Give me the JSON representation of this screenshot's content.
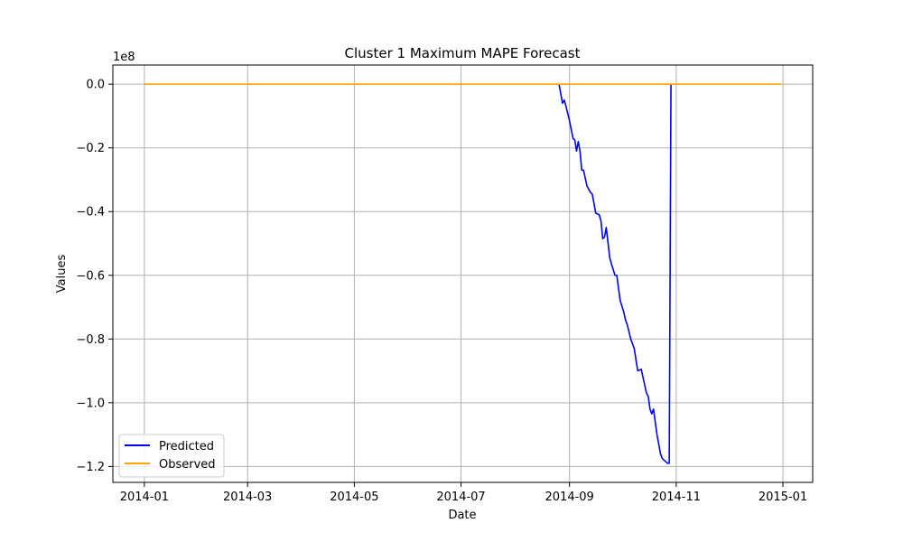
{
  "chart_data": {
    "type": "line",
    "title": "Cluster 1 Maximum MAPE Forecast",
    "xlabel": "Date",
    "ylabel": "Values",
    "y_offset_text": "1e8",
    "xlim": [
      "2013-12-14",
      "2015-01-18"
    ],
    "ylim": [
      -1.25,
      0.06
    ],
    "y_unit_multiplier": 100000000,
    "x_ticks": [
      {
        "date": "2014-01-01",
        "label": "2014-01"
      },
      {
        "date": "2014-03-01",
        "label": "2014-03"
      },
      {
        "date": "2014-05-01",
        "label": "2014-05"
      },
      {
        "date": "2014-07-01",
        "label": "2014-07"
      },
      {
        "date": "2014-09-01",
        "label": "2014-09"
      },
      {
        "date": "2014-11-01",
        "label": "2014-11"
      },
      {
        "date": "2015-01-01",
        "label": "2015-01"
      }
    ],
    "y_ticks": [
      {
        "value": 0.0,
        "label": "0.0"
      },
      {
        "value": -0.2,
        "label": "−0.2"
      },
      {
        "value": -0.4,
        "label": "−0.4"
      },
      {
        "value": -0.6,
        "label": "−0.6"
      },
      {
        "value": -0.8,
        "label": "−0.8"
      },
      {
        "value": -1.0,
        "label": "−1.0"
      },
      {
        "value": -1.2,
        "label": "−1.2"
      }
    ],
    "grid": true,
    "legend_position": "lower-left",
    "series": [
      {
        "name": "Predicted",
        "color": "#0000ff",
        "x": [
          "2014-08-26",
          "2014-08-28",
          "2014-08-29",
          "2014-08-30",
          "2014-09-01",
          "2014-09-03",
          "2014-09-04",
          "2014-09-05",
          "2014-09-06",
          "2014-09-07",
          "2014-09-08",
          "2014-09-09",
          "2014-09-11",
          "2014-09-13",
          "2014-09-14",
          "2014-09-16",
          "2014-09-18",
          "2014-09-19",
          "2014-09-20",
          "2014-09-21",
          "2014-09-22",
          "2014-09-24",
          "2014-09-25",
          "2014-09-27",
          "2014-09-28",
          "2014-09-29",
          "2014-09-30",
          "2014-10-02",
          "2014-10-03",
          "2014-10-04",
          "2014-10-06",
          "2014-10-08",
          "2014-10-09",
          "2014-10-10",
          "2014-10-12",
          "2014-10-13",
          "2014-10-15",
          "2014-10-16",
          "2014-10-17",
          "2014-10-18",
          "2014-10-19",
          "2014-10-21",
          "2014-10-22",
          "2014-10-23",
          "2014-10-24",
          "2014-10-25",
          "2014-10-27",
          "2014-10-28",
          "2014-10-29"
        ],
        "values": [
          0.0,
          -0.06,
          -0.05,
          -0.07,
          -0.115,
          -0.17,
          -0.175,
          -0.21,
          -0.18,
          -0.21,
          -0.27,
          -0.27,
          -0.32,
          -0.34,
          -0.345,
          -0.405,
          -0.41,
          -0.43,
          -0.485,
          -0.48,
          -0.45,
          -0.545,
          -0.565,
          -0.6,
          -0.6,
          -0.64,
          -0.68,
          -0.715,
          -0.74,
          -0.755,
          -0.8,
          -0.83,
          -0.865,
          -0.9,
          -0.895,
          -0.92,
          -0.97,
          -0.98,
          -1.02,
          -1.035,
          -1.02,
          -1.1,
          -1.13,
          -1.16,
          -1.175,
          -1.18,
          -1.19,
          -1.19,
          0.0
        ]
      },
      {
        "name": "Observed",
        "color": "#ffa500",
        "x": [
          "2014-01-01",
          "2014-04-01",
          "2014-07-01",
          "2014-10-01",
          "2014-12-31"
        ],
        "values": [
          0.0,
          0.0,
          0.0,
          0.0,
          0.0
        ]
      }
    ]
  }
}
